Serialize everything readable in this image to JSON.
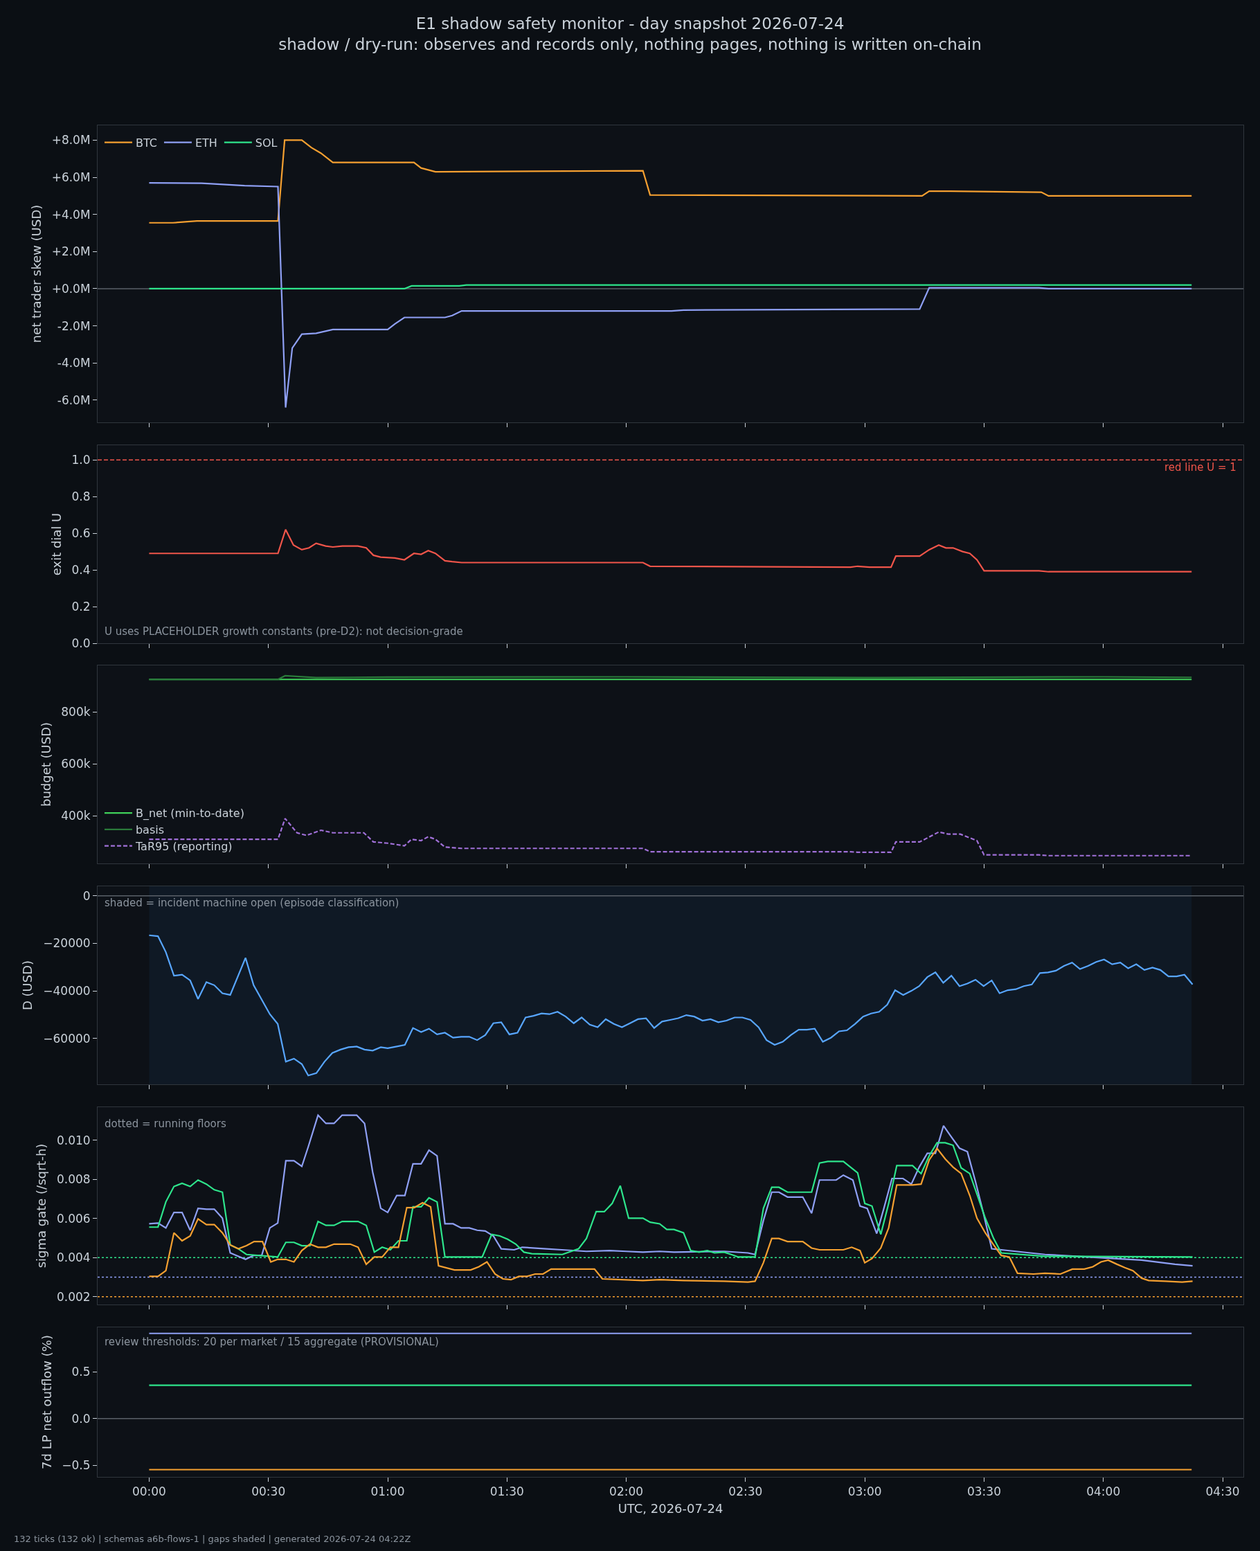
{
  "chart_data": [
    {
      "type": "line",
      "title": "E1 shadow safety monitor - day snapshot 2026-07-24",
      "subtitle": "shadow / dry-run: observes and records only, nothing pages, nothing is written on-chain",
      "ylabel": "net trader skew (USD)",
      "legend": "top left",
      "grid": false,
      "marker": "none",
      "tick_labels": "y",
      "xlim": [
        -0.216,
        4.587
      ],
      "xticks": [
        {
          "value": 0,
          "label": null
        },
        {
          "value": 0.5,
          "label": null
        },
        {
          "value": 1,
          "label": null
        },
        {
          "value": 1.5,
          "label": null
        },
        {
          "value": 2,
          "label": null
        },
        {
          "value": 2.5,
          "label": null
        },
        {
          "value": 3,
          "label": null
        },
        {
          "value": 3.5,
          "label": null
        },
        {
          "value": 4,
          "label": null
        },
        {
          "value": 4.5,
          "label": null
        }
      ],
      "ylim": [
        -7200000,
        8800000
      ],
      "yticks": [
        {
          "value": -6000000,
          "label": "-6.0M"
        },
        {
          "value": -4000000,
          "label": "-4.0M"
        },
        {
          "value": -2000000,
          "label": "-2.0M"
        },
        {
          "value": 0,
          "label": "+0.0M"
        },
        {
          "value": 2000000,
          "label": "+2.0M"
        },
        {
          "value": 4000000,
          "label": "+4.0M"
        },
        {
          "value": 6000000,
          "label": "+6.0M"
        },
        {
          "value": 8000000,
          "label": "+8.0M"
        }
      ],
      "ref_lines": [
        {
          "axis": "y",
          "value": 0,
          "color": "#5a6068"
        }
      ],
      "series": [
        {
          "name": "BTC",
          "color": "#f5a031",
          "x": [
            0,
            0.1,
            0.2,
            0.54,
            0.568,
            0.64,
            0.68,
            0.72,
            0.77,
            1.11,
            1.14,
            1.2,
            2.07,
            2.1,
            3.24,
            3.27,
            3.36,
            3.74,
            3.77,
            4.37
          ],
          "values": [
            3550000,
            3550000,
            3650000,
            3650000,
            8000000,
            8000000,
            7600000,
            7300000,
            6800000,
            6800000,
            6500000,
            6300000,
            6350000,
            5050000,
            5000000,
            5250000,
            5250000,
            5200000,
            5000000,
            5000000
          ]
        },
        {
          "name": "ETH",
          "color": "#8fa0f5",
          "x": [
            0,
            0.22,
            0.4,
            0.54,
            0.572,
            0.6,
            0.64,
            0.7,
            0.77,
            1.0,
            1.03,
            1.07,
            1.24,
            1.27,
            1.31,
            2.19,
            2.24,
            3.23,
            3.27,
            3.73,
            3.77,
            4.37
          ],
          "values": [
            5700000,
            5680000,
            5550000,
            5500000,
            -6400000,
            -3200000,
            -2450000,
            -2400000,
            -2200000,
            -2200000,
            -1900000,
            -1550000,
            -1550000,
            -1450000,
            -1200000,
            -1200000,
            -1150000,
            -1100000,
            50000,
            50000,
            0,
            0
          ]
        },
        {
          "name": "SOL",
          "color": "#2ee58c",
          "x": [
            0,
            1.07,
            1.1,
            1.3,
            1.33,
            4.37
          ],
          "values": [
            0,
            0,
            150000,
            150000,
            200000,
            200000
          ]
        }
      ]
    },
    {
      "type": "line",
      "ylabel": "exit dial U",
      "grid": false,
      "marker": "none",
      "tick_labels": "y",
      "xlim": [
        -0.216,
        4.587
      ],
      "xticks": [
        {
          "value": 0,
          "label": null
        },
        {
          "value": 0.5,
          "label": null
        },
        {
          "value": 1,
          "label": null
        },
        {
          "value": 1.5,
          "label": null
        },
        {
          "value": 2,
          "label": null
        },
        {
          "value": 2.5,
          "label": null
        },
        {
          "value": 3,
          "label": null
        },
        {
          "value": 3.5,
          "label": null
        },
        {
          "value": 4,
          "label": null
        },
        {
          "value": 4.5,
          "label": null
        }
      ],
      "ylim": [
        0,
        1.08
      ],
      "yticks": [
        {
          "value": 0,
          "label": "0.0"
        },
        {
          "value": 0.2,
          "label": "0.2"
        },
        {
          "value": 0.4,
          "label": "0.4"
        },
        {
          "value": 0.6,
          "label": "0.6"
        },
        {
          "value": 0.8,
          "label": "0.8"
        },
        {
          "value": 1,
          "label": "1.0"
        }
      ],
      "ref_lines": [
        {
          "axis": "y",
          "value": 1,
          "label": "red line U = 1",
          "color": "#f0554a",
          "line_style": "dashed"
        }
      ],
      "annotations": [
        "U uses PLACEHOLDER growth constants (pre-D2): not decision-grade"
      ],
      "series": [
        {
          "color": "#f0554a",
          "x": [
            0,
            0.54,
            0.572,
            0.605,
            0.64,
            0.67,
            0.7,
            0.74,
            0.77,
            0.81,
            0.875,
            0.91,
            0.94,
            0.97,
            1.03,
            1.07,
            1.11,
            1.14,
            1.17,
            1.2,
            1.24,
            1.27,
            1.31,
            2.07,
            2.1,
            2.94,
            2.97,
            3.02,
            3.11,
            3.13,
            3.23,
            3.27,
            3.31,
            3.34,
            3.37,
            3.41,
            3.44,
            3.47,
            3.5,
            3.73,
            3.77,
            4.37
          ],
          "values": [
            0.49,
            0.49,
            0.62,
            0.535,
            0.51,
            0.52,
            0.545,
            0.53,
            0.525,
            0.53,
            0.53,
            0.52,
            0.48,
            0.47,
            0.465,
            0.455,
            0.49,
            0.485,
            0.505,
            0.49,
            0.45,
            0.445,
            0.44,
            0.44,
            0.42,
            0.415,
            0.42,
            0.415,
            0.415,
            0.475,
            0.475,
            0.51,
            0.535,
            0.52,
            0.52,
            0.5,
            0.49,
            0.455,
            0.395,
            0.395,
            0.39,
            0.39
          ]
        }
      ]
    },
    {
      "type": "line",
      "ylabel": "budget (USD)",
      "legend": "bottom left",
      "grid": false,
      "marker": "none",
      "tick_labels": "y",
      "xlim": [
        -0.216,
        4.587
      ],
      "xticks": [
        {
          "value": 0,
          "label": null
        },
        {
          "value": 0.5,
          "label": null
        },
        {
          "value": 1,
          "label": null
        },
        {
          "value": 1.5,
          "label": null
        },
        {
          "value": 2,
          "label": null
        },
        {
          "value": 2.5,
          "label": null
        },
        {
          "value": 3,
          "label": null
        },
        {
          "value": 3.5,
          "label": null
        },
        {
          "value": 4,
          "label": null
        },
        {
          "value": 4.5,
          "label": null
        }
      ],
      "ylim": [
        217000,
        980000
      ],
      "yticks": [
        {
          "value": 400000,
          "label": "400k"
        },
        {
          "value": 600000,
          "label": "600k"
        },
        {
          "value": 800000,
          "label": "800k"
        }
      ],
      "series": [
        {
          "name": "B_net (min-to-date)",
          "color": "#3fd15a",
          "x": [
            0,
            4.37
          ],
          "values": [
            926000,
            926000
          ]
        },
        {
          "name": "basis",
          "color": "#2a7a3a",
          "x": [
            0,
            0.54,
            0.57,
            0.7,
            1.0,
            2.0,
            3.0,
            4.0,
            4.37
          ],
          "values": [
            926000,
            926000,
            940000,
            933000,
            935000,
            936000,
            933000,
            936000,
            934000
          ]
        },
        {
          "name": "TaR95 (reporting)",
          "color": "#a070d8",
          "line_style": "dashed",
          "x": [
            0,
            0.54,
            0.57,
            0.62,
            0.66,
            0.72,
            0.77,
            0.9,
            0.94,
            1.0,
            1.07,
            1.1,
            1.14,
            1.17,
            1.2,
            1.24,
            1.31,
            2.07,
            2.1,
            2.94,
            2.97,
            3.11,
            3.13,
            3.23,
            3.31,
            3.35,
            3.4,
            3.47,
            3.5,
            3.73,
            3.77,
            4.37
          ],
          "values": [
            310000,
            310000,
            390000,
            335000,
            325000,
            345000,
            335000,
            335000,
            300000,
            295000,
            285000,
            310000,
            305000,
            320000,
            310000,
            280000,
            275000,
            275000,
            262000,
            262000,
            260000,
            260000,
            300000,
            300000,
            338000,
            330000,
            330000,
            305000,
            250000,
            250000,
            247000,
            247000
          ]
        }
      ]
    },
    {
      "type": "line",
      "ylabel": "D (USD)",
      "grid": false,
      "marker": "none",
      "tick_labels": "y",
      "xlim": [
        -0.216,
        4.587
      ],
      "xticks": [
        {
          "value": 0,
          "label": null
        },
        {
          "value": 0.5,
          "label": null
        },
        {
          "value": 1,
          "label": null
        },
        {
          "value": 1.5,
          "label": null
        },
        {
          "value": 2,
          "label": null
        },
        {
          "value": 2.5,
          "label": null
        },
        {
          "value": 3,
          "label": null
        },
        {
          "value": 3.5,
          "label": null
        },
        {
          "value": 4,
          "label": null
        },
        {
          "value": 4.5,
          "label": null
        }
      ],
      "ylim": [
        -79300,
        4000
      ],
      "yticks": [
        {
          "value": -60000,
          "label": "−60000"
        },
        {
          "value": -40000,
          "label": "−40000"
        },
        {
          "value": -20000,
          "label": "−20000"
        },
        {
          "value": 0,
          "label": "0"
        }
      ],
      "ref_lines": [
        {
          "axis": "y",
          "value": 0,
          "color": "#5a6068"
        }
      ],
      "bands": [
        {
          "axis": "x",
          "from": 0,
          "to": 4.37,
          "color": "#0f1925"
        }
      ],
      "annotations": [
        "shaded = incident machine open (episode classification)"
      ],
      "series": [
        {
          "color": "#58a6ff",
          "x": [
            0,
            0.037,
            0.07,
            0.104,
            0.138,
            0.172,
            0.205,
            0.24,
            0.273,
            0.307,
            0.34,
            0.404,
            0.438,
            0.506,
            0.539,
            0.573,
            0.607,
            0.64,
            0.667,
            0.701,
            0.735,
            0.768,
            0.802,
            0.836,
            0.87,
            0.903,
            0.937,
            0.971,
            1.0,
            1.038,
            1.072,
            1.106,
            1.14,
            1.173,
            1.207,
            1.24,
            1.274,
            1.308,
            1.342,
            1.375,
            1.409,
            1.443,
            1.476,
            1.51,
            1.544,
            1.578,
            1.611,
            1.645,
            1.678,
            1.712,
            1.746,
            1.78,
            1.813,
            1.847,
            1.88,
            1.914,
            1.948,
            1.982,
            2.016,
            2.049,
            2.083,
            2.117,
            2.15,
            2.184,
            2.218,
            2.252,
            2.285,
            2.32,
            2.353,
            2.386,
            2.42,
            2.454,
            2.487,
            2.521,
            2.555,
            2.588,
            2.622,
            2.656,
            2.69,
            2.723,
            2.757,
            2.79,
            2.824,
            2.858,
            2.892,
            2.925,
            2.959,
            2.993,
            3.026,
            3.06,
            3.094,
            3.127,
            3.161,
            3.195,
            3.228,
            3.262,
            3.296,
            3.329,
            3.363,
            3.397,
            3.43,
            3.464,
            3.498,
            3.532,
            3.565,
            3.599,
            3.633,
            3.666,
            3.7,
            3.734,
            3.768,
            3.801,
            3.835,
            3.869,
            3.902,
            3.936,
            3.97,
            4.003,
            4.037,
            4.071,
            4.104,
            4.138,
            4.172,
            4.206,
            4.239,
            4.273,
            4.307,
            4.34,
            4.374
          ],
          "values": [
            -16600,
            -17000,
            -23700,
            -33600,
            -33200,
            -35600,
            -43400,
            -36300,
            -37600,
            -41000,
            -41700,
            -26100,
            -37600,
            -49800,
            -53900,
            -69800,
            -68500,
            -70800,
            -75600,
            -74600,
            -69800,
            -66100,
            -64700,
            -63700,
            -63400,
            -64700,
            -65100,
            -63700,
            -64100,
            -63400,
            -62700,
            -55600,
            -57300,
            -55900,
            -58300,
            -57600,
            -59700,
            -59300,
            -59300,
            -60700,
            -58600,
            -53600,
            -53200,
            -58300,
            -57600,
            -51200,
            -50500,
            -49500,
            -49800,
            -48800,
            -50800,
            -53600,
            -51200,
            -54200,
            -55300,
            -51900,
            -53900,
            -55300,
            -53600,
            -51900,
            -51500,
            -55600,
            -52900,
            -52200,
            -51500,
            -50200,
            -50800,
            -52500,
            -51900,
            -53200,
            -52500,
            -51200,
            -51200,
            -52200,
            -55300,
            -60700,
            -62700,
            -61400,
            -58600,
            -56300,
            -56300,
            -55900,
            -61400,
            -59700,
            -57000,
            -56600,
            -53900,
            -50800,
            -49500,
            -48800,
            -45800,
            -39700,
            -41700,
            -40000,
            -38000,
            -34200,
            -32200,
            -36600,
            -33600,
            -38000,
            -36900,
            -35300,
            -38000,
            -35600,
            -41000,
            -39700,
            -39300,
            -38000,
            -37300,
            -32500,
            -32200,
            -31500,
            -29500,
            -28100,
            -30800,
            -29500,
            -27800,
            -26800,
            -28800,
            -28100,
            -30500,
            -28800,
            -31200,
            -30200,
            -31200,
            -33900,
            -33900,
            -33200,
            -37300
          ]
        }
      ]
    },
    {
      "type": "line",
      "ylabel": "sigma gate (/sqrt-h)",
      "grid": false,
      "marker": "none",
      "tick_labels": "y",
      "xlim": [
        -0.216,
        4.587
      ],
      "xticks": [
        {
          "value": 0,
          "label": null
        },
        {
          "value": 0.5,
          "label": null
        },
        {
          "value": 1,
          "label": null
        },
        {
          "value": 1.5,
          "label": null
        },
        {
          "value": 2,
          "label": null
        },
        {
          "value": 2.5,
          "label": null
        },
        {
          "value": 3,
          "label": null
        },
        {
          "value": 3.5,
          "label": null
        },
        {
          "value": 4,
          "label": null
        },
        {
          "value": 4.5,
          "label": null
        }
      ],
      "ylim": [
        0.0016,
        0.0117
      ],
      "yticks": [
        {
          "value": 0.002,
          "label": "0.002"
        },
        {
          "value": 0.004,
          "label": "0.004"
        },
        {
          "value": 0.006,
          "label": "0.006"
        },
        {
          "value": 0.008,
          "label": "0.008"
        },
        {
          "value": 0.01,
          "label": "0.010"
        }
      ],
      "ref_lines": [
        {
          "axis": "y",
          "value": 0.004,
          "color": "#2ee58c",
          "line_style": "dotted"
        },
        {
          "axis": "y",
          "value": 0.003,
          "color": "#8fa0f5",
          "line_style": "dotted"
        },
        {
          "axis": "y",
          "value": 0.002,
          "color": "#f5a031",
          "line_style": "dotted"
        }
      ],
      "annotations": [
        "dotted = running floors"
      ],
      "series": [
        {
          "color": "#8fa0f5",
          "x": [
            0,
            0.037,
            0.07,
            0.104,
            0.138,
            0.172,
            0.205,
            0.24,
            0.273,
            0.307,
            0.34,
            0.404,
            0.438,
            0.472,
            0.506,
            0.539,
            0.573,
            0.607,
            0.64,
            0.667,
            0.708,
            0.741,
            0.775,
            0.809,
            0.87,
            0.903,
            0.937,
            0.971,
            1.0,
            1.038,
            1.072,
            1.106,
            1.14,
            1.173,
            1.207,
            1.24,
            1.274,
            1.308,
            1.342,
            1.375,
            1.409,
            1.443,
            1.476,
            1.53,
            1.564,
            1.665,
            1.73,
            1.833,
            1.93,
            2.0,
            2.07,
            2.14,
            2.2,
            2.41,
            2.51,
            2.54,
            2.575,
            2.61,
            2.64,
            2.676,
            2.74,
            2.777,
            2.81,
            2.88,
            2.91,
            2.95,
            2.98,
            3.01,
            3.05,
            3.08,
            3.114,
            3.16,
            3.195,
            3.228,
            3.262,
            3.296,
            3.33,
            3.363,
            3.397,
            3.43,
            3.464,
            3.498,
            3.532,
            3.755,
            4.0,
            4.16,
            4.3,
            4.374
          ],
          "values": [
            0.00573,
            0.00577,
            0.00552,
            0.00631,
            0.00631,
            0.0054,
            0.00652,
            0.00648,
            0.00648,
            0.00602,
            0.00424,
            0.00391,
            0.00411,
            0.00411,
            0.00552,
            0.00577,
            0.00896,
            0.00896,
            0.00867,
            0.00967,
            0.01129,
            0.01087,
            0.01087,
            0.01129,
            0.01129,
            0.01087,
            0.00838,
            0.00652,
            0.00631,
            0.00718,
            0.00718,
            0.0088,
            0.0088,
            0.0095,
            0.00921,
            0.00573,
            0.00573,
            0.00552,
            0.00552,
            0.0054,
            0.00536,
            0.00511,
            0.00445,
            0.0044,
            0.00453,
            0.00445,
            0.0044,
            0.00432,
            0.00436,
            0.00432,
            0.00428,
            0.00432,
            0.00428,
            0.00432,
            0.00424,
            0.00416,
            0.0059,
            0.00735,
            0.00735,
            0.0071,
            0.0071,
            0.00627,
            0.00797,
            0.00797,
            0.00822,
            0.00797,
            0.00664,
            0.00652,
            0.00523,
            0.00652,
            0.00805,
            0.00805,
            0.00776,
            0.00863,
            0.00934,
            0.00934,
            0.01075,
            0.01017,
            0.0096,
            0.00942,
            0.00789,
            0.00623,
            0.00445,
            0.00416,
            0.00399,
            0.00387,
            0.00366,
            0.00358
          ]
        },
        {
          "color": "#2ee58c",
          "x": [
            0,
            0.037,
            0.07,
            0.104,
            0.138,
            0.172,
            0.205,
            0.24,
            0.273,
            0.307,
            0.34,
            0.374,
            0.408,
            0.539,
            0.573,
            0.607,
            0.64,
            0.674,
            0.708,
            0.741,
            0.775,
            0.809,
            0.876,
            0.91,
            0.944,
            0.977,
            1.011,
            1.045,
            1.08,
            1.106,
            1.14,
            1.173,
            1.207,
            1.24,
            1.396,
            1.436,
            1.47,
            1.503,
            1.537,
            1.571,
            1.604,
            1.732,
            1.8,
            1.833,
            1.874,
            1.908,
            1.941,
            1.975,
            2.01,
            2.07,
            2.1,
            2.14,
            2.17,
            2.2,
            2.24,
            2.27,
            2.305,
            2.34,
            2.37,
            2.41,
            2.44,
            2.47,
            2.54,
            2.575,
            2.61,
            2.64,
            2.676,
            2.777,
            2.81,
            2.845,
            2.91,
            2.97,
            3.0,
            3.03,
            3.067,
            3.1,
            3.134,
            3.2,
            3.236,
            3.27,
            3.303,
            3.337,
            3.37,
            3.404,
            3.44,
            3.47,
            3.505,
            3.54,
            3.572,
            3.755,
            4.374
          ],
          "values": [
            0.00556,
            0.00556,
            0.00685,
            0.00764,
            0.0078,
            0.00764,
            0.00797,
            0.00776,
            0.00747,
            0.00735,
            0.00465,
            0.00445,
            0.00416,
            0.00403,
            0.00478,
            0.00478,
            0.00461,
            0.00461,
            0.00585,
            0.00565,
            0.00565,
            0.00585,
            0.00585,
            0.00565,
            0.00428,
            0.00453,
            0.0044,
            0.00486,
            0.00486,
            0.0066,
            0.0066,
            0.00706,
            0.00685,
            0.00403,
            0.00403,
            0.00519,
            0.00511,
            0.00494,
            0.00469,
            0.00428,
            0.0042,
            0.00416,
            0.00445,
            0.00498,
            0.00635,
            0.00635,
            0.00677,
            0.00768,
            0.00602,
            0.00602,
            0.00581,
            0.00573,
            0.00544,
            0.00544,
            0.00527,
            0.00436,
            0.00428,
            0.00436,
            0.00424,
            0.00428,
            0.00416,
            0.00403,
            0.00403,
            0.00652,
            0.0076,
            0.0076,
            0.00735,
            0.00735,
            0.00884,
            0.00892,
            0.00892,
            0.00834,
            0.00677,
            0.00664,
            0.00519,
            0.00677,
            0.00871,
            0.00871,
            0.0083,
            0.00921,
            0.00988,
            0.00988,
            0.00975,
            0.00859,
            0.0083,
            0.00726,
            0.00602,
            0.00498,
            0.00424,
            0.00407,
            0.00403
          ]
        },
        {
          "color": "#f5a031",
          "x": [
            0,
            0.037,
            0.07,
            0.104,
            0.138,
            0.172,
            0.205,
            0.24,
            0.273,
            0.307,
            0.34,
            0.374,
            0.408,
            0.44,
            0.475,
            0.51,
            0.539,
            0.573,
            0.607,
            0.64,
            0.674,
            0.708,
            0.741,
            0.775,
            0.843,
            0.876,
            0.91,
            0.944,
            0.977,
            1.011,
            1.045,
            1.08,
            1.112,
            1.146,
            1.18,
            1.213,
            1.28,
            1.348,
            1.382,
            1.416,
            1.45,
            1.483,
            1.517,
            1.55,
            1.584,
            1.618,
            1.651,
            1.685,
            1.867,
            1.9,
            2.07,
            2.14,
            2.24,
            2.41,
            2.51,
            2.54,
            2.575,
            2.61,
            2.64,
            2.676,
            2.74,
            2.777,
            2.81,
            2.91,
            2.945,
            2.98,
            3.0,
            3.03,
            3.067,
            3.1,
            3.134,
            3.2,
            3.236,
            3.27,
            3.303,
            3.337,
            3.37,
            3.404,
            3.44,
            3.47,
            3.505,
            3.54,
            3.572,
            3.606,
            3.64,
            3.707,
            3.755,
            3.82,
            3.87,
            3.92,
            3.956,
            3.99,
            4.02,
            4.057,
            4.09,
            4.124,
            4.16,
            4.19,
            4.26,
            4.33,
            4.374
          ],
          "values": [
            0.00304,
            0.00304,
            0.00333,
            0.00527,
            0.00486,
            0.00511,
            0.00598,
            0.00569,
            0.00569,
            0.00527,
            0.00465,
            0.00445,
            0.00461,
            0.00482,
            0.00482,
            0.00378,
            0.00391,
            0.00391,
            0.00378,
            0.00436,
            0.00469,
            0.00453,
            0.00453,
            0.00469,
            0.00469,
            0.00453,
            0.00366,
            0.00403,
            0.00403,
            0.00453,
            0.00453,
            0.00656,
            0.00656,
            0.00681,
            0.0066,
            0.00358,
            0.00337,
            0.00337,
            0.00353,
            0.00378,
            0.00316,
            0.00291,
            0.00287,
            0.00304,
            0.00304,
            0.00316,
            0.00316,
            0.00341,
            0.00341,
            0.00291,
            0.00283,
            0.00287,
            0.00283,
            0.00279,
            0.00275,
            0.00279,
            0.00374,
            0.00498,
            0.00498,
            0.00482,
            0.00482,
            0.00449,
            0.0044,
            0.0044,
            0.00453,
            0.00436,
            0.00374,
            0.00395,
            0.00449,
            0.00552,
            0.00772,
            0.00772,
            0.00776,
            0.009,
            0.00959,
            0.00905,
            0.00863,
            0.0083,
            0.00718,
            0.00602,
            0.00527,
            0.00465,
            0.00411,
            0.00403,
            0.0032,
            0.00316,
            0.0032,
            0.00316,
            0.00341,
            0.00341,
            0.00353,
            0.00378,
            0.00387,
            0.00366,
            0.00349,
            0.00333,
            0.00295,
            0.00283,
            0.00279,
            0.00275,
            0.00279
          ]
        }
      ]
    },
    {
      "type": "line",
      "xlabel": "UTC, 2026-07-24",
      "ylabel": "7d LP net outflow (%)",
      "grid": false,
      "marker": "none",
      "xlim": [
        -0.216,
        4.587
      ],
      "xticks": [
        {
          "value": 0,
          "label": "00:00"
        },
        {
          "value": 0.5,
          "label": "00:30"
        },
        {
          "value": 1,
          "label": "01:00"
        },
        {
          "value": 1.5,
          "label": "01:30"
        },
        {
          "value": 2,
          "label": "02:00"
        },
        {
          "value": 2.5,
          "label": "02:30"
        },
        {
          "value": 3,
          "label": "03:00"
        },
        {
          "value": 3.5,
          "label": "03:30"
        },
        {
          "value": 4,
          "label": "04:00"
        },
        {
          "value": 4.5,
          "label": "04:30"
        }
      ],
      "ylim": [
        -0.626,
        0.978
      ],
      "yticks": [
        {
          "value": -0.5,
          "label": "−0.5"
        },
        {
          "value": 0,
          "label": "0.0"
        },
        {
          "value": 0.5,
          "label": "0.5"
        }
      ],
      "ref_lines": [
        {
          "axis": "y",
          "value": 0,
          "color": "#5a6068"
        }
      ],
      "annotations": [
        "review thresholds: 20 per market / 15 aggregate (PROVISIONAL)",
        "132 ticks (132 ok) | schemas a6b-flows-1 | gaps shaded | generated 2026-07-24 04:22Z"
      ],
      "series": [
        {
          "color": "#8fa0f5",
          "x": [
            0,
            4.37
          ],
          "values": [
            0.913,
            0.913
          ]
        },
        {
          "color": "#2ee58c",
          "x": [
            0,
            4.37
          ],
          "values": [
            0.357,
            0.357
          ]
        },
        {
          "color": "#f5a031",
          "x": [
            0,
            4.37
          ],
          "values": [
            -0.548,
            -0.548
          ]
        }
      ]
    }
  ]
}
